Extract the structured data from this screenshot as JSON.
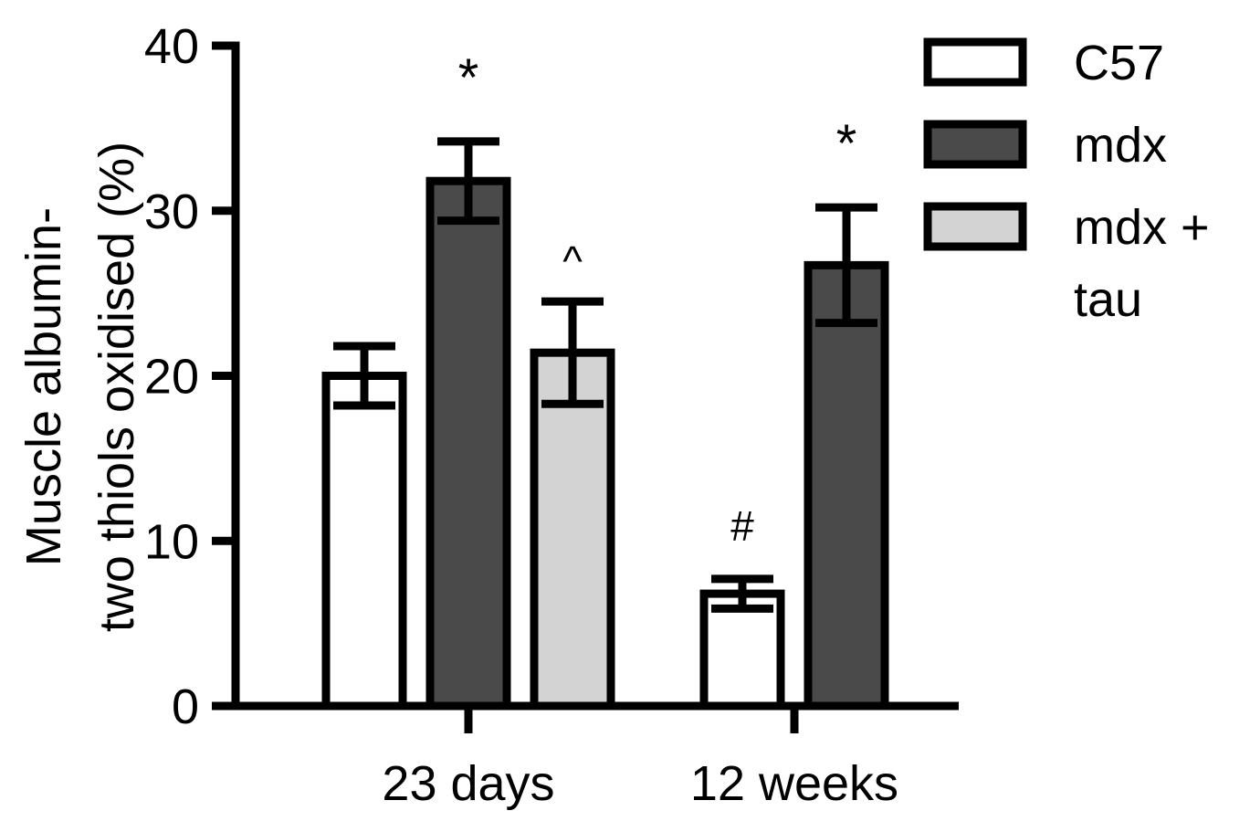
{
  "chart_data": {
    "type": "bar",
    "title": "",
    "xlabel": "",
    "ylabel_lines": [
      "Muscle albumin-",
      "two thiols oxidised (%)"
    ],
    "ylim": [
      0,
      40
    ],
    "yticks": [
      0,
      10,
      20,
      30,
      40
    ],
    "grid": false,
    "legend_position": "top-right",
    "categories": [
      "23 days",
      "12 weeks"
    ],
    "series": [
      {
        "name": "C57",
        "legend_label_lines": [
          "C57"
        ],
        "color": "#ffffff",
        "values": [
          20.0,
          6.8
        ],
        "errors": [
          1.8,
          0.9
        ],
        "annotations": [
          "",
          "#"
        ]
      },
      {
        "name": "mdx",
        "legend_label_lines": [
          "mdx"
        ],
        "color": "#4a4a4a",
        "values": [
          31.8,
          26.7
        ],
        "errors": [
          2.4,
          3.5
        ],
        "annotations": [
          "*",
          "*"
        ]
      },
      {
        "name": "mdx + tau",
        "legend_label_lines": [
          "mdx +",
          "tau"
        ],
        "color": "#d3d3d3",
        "values": [
          21.4,
          null
        ],
        "errors": [
          3.1,
          null
        ],
        "annotations": [
          "^",
          ""
        ]
      }
    ]
  }
}
